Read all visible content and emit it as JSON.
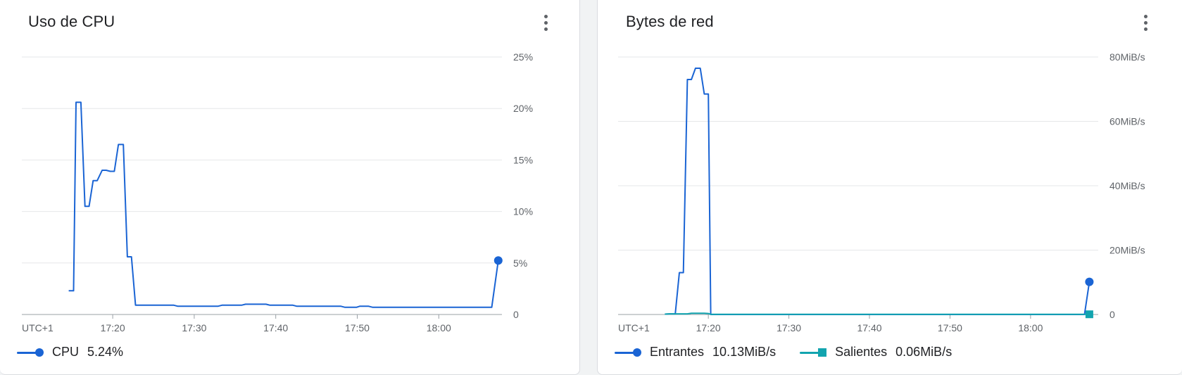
{
  "colors": {
    "blue": "#1a64d4",
    "teal": "#12a4af",
    "grid": "#e6e7e9",
    "axis": "#9aa0a6",
    "label": "#5f6368"
  },
  "cards": {
    "cpu": {
      "title": "Uso de CPU",
      "more_icon": "more-vert-icon"
    },
    "net": {
      "title": "Bytes de red",
      "more_icon": "more-vert-icon"
    }
  },
  "legend": {
    "cpu": {
      "name": "CPU",
      "value": "5.24%"
    },
    "in": {
      "name": "Entrantes",
      "value": "10.13MiB/s"
    },
    "out": {
      "name": "Salientes",
      "value": "0.06MiB/s"
    }
  },
  "chart_data": [
    {
      "type": "line",
      "title": "Uso de CPU",
      "timezone_label": "UTC+1",
      "x_unit": "minutes",
      "x_ticks": [
        {
          "t": "17:20",
          "v": 20
        },
        {
          "t": "17:30",
          "v": 30
        },
        {
          "t": "17:40",
          "v": 40
        },
        {
          "t": "17:50",
          "v": 50
        },
        {
          "t": "18:00",
          "v": 60
        }
      ],
      "xlim": [
        8.85,
        67.75
      ],
      "ylim": [
        0,
        25
      ],
      "y_ticks": [
        {
          "v": 0,
          "t": "0"
        },
        {
          "v": 5,
          "t": "5%"
        },
        {
          "v": 10,
          "t": "10%"
        },
        {
          "v": 15,
          "t": "15%"
        },
        {
          "v": 20,
          "t": "20%"
        },
        {
          "v": 25,
          "t": "25%"
        }
      ],
      "grid": true,
      "legend_position": "bottom-left",
      "series": [
        {
          "name": "CPU",
          "color": "#1a64d4",
          "marker": "circle",
          "points": [
            [
              14.6,
              2.3
            ],
            [
              15.2,
              2.3
            ],
            [
              15.5,
              20.6
            ],
            [
              16.1,
              20.6
            ],
            [
              16.6,
              10.5
            ],
            [
              17.1,
              10.5
            ],
            [
              17.6,
              13.0
            ],
            [
              18.1,
              13.0
            ],
            [
              18.7,
              14.0
            ],
            [
              19.2,
              14.0
            ],
            [
              19.7,
              13.9
            ],
            [
              20.2,
              13.9
            ],
            [
              20.7,
              16.5
            ],
            [
              21.3,
              16.5
            ],
            [
              21.8,
              5.6
            ],
            [
              22.3,
              5.6
            ],
            [
              22.8,
              0.9
            ],
            [
              27.5,
              0.9
            ],
            [
              28.0,
              0.8
            ],
            [
              32.9,
              0.8
            ],
            [
              33.4,
              0.9
            ],
            [
              35.8,
              0.9
            ],
            [
              36.3,
              1.0
            ],
            [
              38.8,
              1.0
            ],
            [
              39.3,
              0.9
            ],
            [
              42.1,
              0.9
            ],
            [
              42.6,
              0.8
            ],
            [
              48.0,
              0.8
            ],
            [
              48.5,
              0.7
            ],
            [
              49.9,
              0.7
            ],
            [
              50.3,
              0.8
            ],
            [
              51.4,
              0.8
            ],
            [
              51.9,
              0.7
            ],
            [
              66.5,
              0.7
            ],
            [
              67.3,
              5.24
            ]
          ]
        }
      ]
    },
    {
      "type": "line",
      "title": "Bytes de red",
      "timezone_label": "UTC+1",
      "x_unit": "minutes",
      "x_ticks": [
        {
          "t": "17:20",
          "v": 20
        },
        {
          "t": "17:30",
          "v": 30
        },
        {
          "t": "17:40",
          "v": 40
        },
        {
          "t": "17:50",
          "v": 50
        },
        {
          "t": "18:00",
          "v": 60
        }
      ],
      "xlim": [
        8.8,
        68.4
      ],
      "ylim": [
        0,
        80
      ],
      "y_ticks": [
        {
          "v": 0,
          "t": "0"
        },
        {
          "v": 20,
          "t": "20MiB/s"
        },
        {
          "v": 40,
          "t": "40MiB/s"
        },
        {
          "v": 60,
          "t": "60MiB/s"
        },
        {
          "v": 80,
          "t": "80MiB/s"
        }
      ],
      "grid": true,
      "legend_position": "bottom-left",
      "series": [
        {
          "name": "Entrantes",
          "color": "#1a64d4",
          "marker": "circle",
          "points": [
            [
              14.6,
              0.1
            ],
            [
              15.2,
              0.2
            ],
            [
              15.9,
              0.2
            ],
            [
              16.4,
              13.0
            ],
            [
              16.9,
              13.0
            ],
            [
              17.4,
              73.0
            ],
            [
              17.9,
              73.0
            ],
            [
              18.4,
              76.5
            ],
            [
              19.0,
              76.5
            ],
            [
              19.5,
              68.5
            ],
            [
              20.0,
              68.5
            ],
            [
              20.3,
              0.0
            ],
            [
              66.7,
              0.0
            ],
            [
              67.3,
              10.13
            ]
          ]
        },
        {
          "name": "Salientes",
          "color": "#12a4af",
          "marker": "square",
          "points": [
            [
              14.6,
              0.1
            ],
            [
              15.2,
              0.2
            ],
            [
              17.4,
              0.2
            ],
            [
              17.9,
              0.4
            ],
            [
              19.5,
              0.4
            ],
            [
              20.0,
              0.3
            ],
            [
              20.3,
              0.06
            ],
            [
              67.3,
              0.06
            ]
          ]
        }
      ]
    }
  ]
}
